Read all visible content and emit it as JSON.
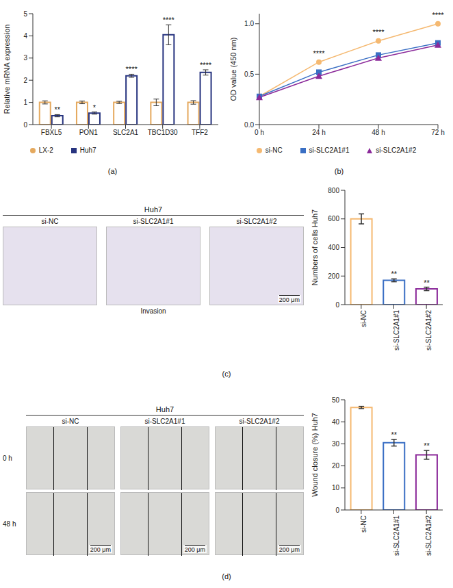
{
  "chart_data": [
    {
      "type": "bar",
      "ylabel": "Relative mRNA expression",
      "categories": [
        "FBXL5",
        "PON1",
        "SLC2A1",
        "TBC1D30",
        "TFF2"
      ],
      "series": [
        {
          "name": "LX-2",
          "color": "#e5a95e",
          "marker": "circle",
          "values": [
            1.0,
            1.0,
            1.0,
            1.0,
            1.0
          ],
          "errors": [
            0.07,
            0.06,
            0.05,
            0.15,
            0.08
          ]
        },
        {
          "name": "Huh7",
          "color": "#27347f",
          "marker": "square",
          "values": [
            0.4,
            0.52,
            2.2,
            4.05,
            2.35
          ],
          "errors": [
            0.05,
            0.05,
            0.07,
            0.45,
            0.12
          ]
        }
      ],
      "ylim": [
        0,
        5
      ],
      "yticks": [
        0,
        1,
        2,
        3,
        4,
        5
      ],
      "annotations": [
        {
          "category": "FBXL5",
          "text": "**"
        },
        {
          "category": "PON1",
          "text": "*"
        },
        {
          "category": "SLC2A1",
          "text": "****"
        },
        {
          "category": "TBC1D30",
          "text": "****"
        },
        {
          "category": "TFF2",
          "text": "****"
        }
      ],
      "legend": "bottom"
    },
    {
      "type": "line",
      "ylabel": "OD value (450 nm)",
      "categories": [
        "0 h",
        "24 h",
        "48 h",
        "72 h"
      ],
      "series": [
        {
          "name": "si-NC",
          "color": "#f5b971",
          "marker": "circle",
          "values": [
            0.28,
            0.62,
            0.83,
            1.0
          ],
          "errors": [
            0.01,
            0.01,
            0.01,
            0.01
          ]
        },
        {
          "name": "si-SLC2A1#1",
          "color": "#3a6fc4",
          "marker": "square",
          "values": [
            0.28,
            0.52,
            0.69,
            0.81
          ],
          "errors": [
            0.01,
            0.01,
            0.01,
            0.01
          ]
        },
        {
          "name": "si-SLC2A1#2",
          "color": "#8b2a9a",
          "marker": "triangle",
          "values": [
            0.27,
            0.48,
            0.66,
            0.79
          ],
          "errors": [
            0.01,
            0.01,
            0.01,
            0.01
          ]
        }
      ],
      "ylim": [
        0,
        1.1
      ],
      "yticks": [
        {
          "value": 0,
          "label": "0.0"
        },
        {
          "value": 0.5,
          "label": "0.5"
        },
        {
          "value": 1,
          "label": "1.0"
        }
      ],
      "annotations": [
        {
          "category": "24 h",
          "text": "****"
        },
        {
          "category": "48 h",
          "text": "****"
        },
        {
          "category": "72 h",
          "text": "****"
        }
      ],
      "legend": "bottom"
    },
    {
      "type": "bar",
      "ylabel": "Numbers of cells Huh7",
      "categories": [
        "si-NC",
        "si-SLC2A1#1",
        "si-SLC2A1#2"
      ],
      "values": [
        600,
        170,
        110
      ],
      "errors": [
        35,
        10,
        12
      ],
      "colors": [
        "#f5b971",
        "#3a6fc4",
        "#8b2a9a"
      ],
      "ylim": [
        0,
        800
      ],
      "yticks": [
        0,
        200,
        400,
        600,
        800
      ],
      "annotations": [
        {
          "category": "si-SLC2A1#1",
          "text": "**"
        },
        {
          "category": "si-SLC2A1#2",
          "text": "**"
        }
      ]
    },
    {
      "type": "bar",
      "ylabel": "Wound closure (%) Huh7",
      "categories": [
        "si-NC",
        "si-SLC2A1#1",
        "si-SLC2A1#2"
      ],
      "values": [
        46.5,
        30.5,
        25
      ],
      "errors": [
        0.5,
        1.5,
        2
      ],
      "colors": [
        "#f5b971",
        "#3a6fc4",
        "#8b2a9a"
      ],
      "ylim": [
        0,
        50
      ],
      "yticks": [
        0,
        10,
        20,
        30,
        40,
        50
      ],
      "annotations": [
        {
          "category": "si-SLC2A1#1",
          "text": "**"
        },
        {
          "category": "si-SLC2A1#2",
          "text": "**"
        }
      ]
    }
  ],
  "image_panels": [
    {
      "header": "Huh7",
      "columns": [
        "si-NC",
        "si-SLC2A1#1",
        "si-SLC2A1#2"
      ],
      "scale_bar": "200 μm",
      "caption": "Invasion"
    },
    {
      "header": "Huh7",
      "columns": [
        "si-NC",
        "si-SLC2A1#1",
        "si-SLC2A1#2"
      ],
      "rows": [
        "0 h",
        "48 h"
      ],
      "scale_bar": "200 μm"
    }
  ],
  "panel_labels": [
    "(a)",
    "(b)",
    "(c)",
    "(d)"
  ]
}
